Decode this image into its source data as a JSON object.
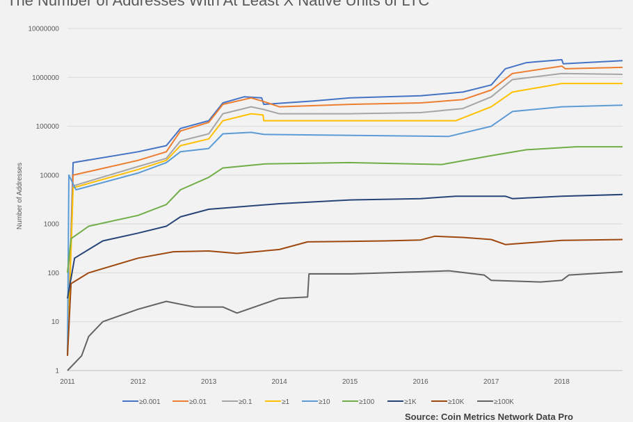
{
  "chart_data": {
    "type": "line",
    "title": "The Number of Addresses With At Least X Native Units of LTC",
    "ylabel": "Number of Addresses",
    "xlabel": "",
    "yscale": "log",
    "ylim": [
      1,
      10000000
    ],
    "xlim": [
      2011,
      2018.86
    ],
    "yticks": [
      "1",
      "10",
      "100",
      "1000",
      "10000",
      "100000",
      "1000000",
      "10000000"
    ],
    "xticks": [
      "2011",
      "2012",
      "2013",
      "2014",
      "2015",
      "2016",
      "2017",
      "2018"
    ],
    "grid": true,
    "legend_position": "bottom",
    "source": "Source: Coin Metrics Network Data Pro",
    "series": [
      {
        "name": "≥0.001",
        "color": "#4472c4",
        "points": [
          [
            2011,
            2
          ],
          [
            2011.08,
            18000
          ],
          [
            2012,
            30000
          ],
          [
            2012.4,
            40000
          ],
          [
            2012.6,
            90000
          ],
          [
            2013,
            130000
          ],
          [
            2013.2,
            300000
          ],
          [
            2013.5,
            400000
          ],
          [
            2013.75,
            380000
          ],
          [
            2013.78,
            280000
          ],
          [
            2014.5,
            330000
          ],
          [
            2015,
            380000
          ],
          [
            2016,
            420000
          ],
          [
            2016.6,
            500000
          ],
          [
            2017,
            700000
          ],
          [
            2017.2,
            1500000
          ],
          [
            2017.5,
            2000000
          ],
          [
            2018,
            2300000
          ],
          [
            2018.02,
            1900000
          ],
          [
            2018.86,
            2200000
          ]
        ]
      },
      {
        "name": "≥0.01",
        "color": "#ed7d31",
        "points": [
          [
            2011,
            2
          ],
          [
            2011.08,
            10000
          ],
          [
            2012,
            20000
          ],
          [
            2012.4,
            30000
          ],
          [
            2012.6,
            80000
          ],
          [
            2013,
            120000
          ],
          [
            2013.2,
            280000
          ],
          [
            2013.6,
            380000
          ],
          [
            2013.78,
            320000
          ],
          [
            2014,
            250000
          ],
          [
            2015,
            280000
          ],
          [
            2016,
            300000
          ],
          [
            2016.6,
            350000
          ],
          [
            2017,
            550000
          ],
          [
            2017.3,
            1200000
          ],
          [
            2018,
            1700000
          ],
          [
            2018.05,
            1500000
          ],
          [
            2018.86,
            1600000
          ]
        ]
      },
      {
        "name": "≥0.1",
        "color": "#a5a5a5",
        "points": [
          [
            2011,
            2
          ],
          [
            2011.08,
            6000
          ],
          [
            2012,
            15000
          ],
          [
            2012.4,
            22000
          ],
          [
            2012.6,
            50000
          ],
          [
            2013,
            70000
          ],
          [
            2013.2,
            180000
          ],
          [
            2013.6,
            250000
          ],
          [
            2013.78,
            220000
          ],
          [
            2014,
            180000
          ],
          [
            2015,
            180000
          ],
          [
            2016,
            190000
          ],
          [
            2016.6,
            230000
          ],
          [
            2017,
            400000
          ],
          [
            2017.3,
            900000
          ],
          [
            2018,
            1200000
          ],
          [
            2018.86,
            1150000
          ]
        ]
      },
      {
        "name": "≥1",
        "color": "#ffc000",
        "points": [
          [
            2011,
            2
          ],
          [
            2011.08,
            5500
          ],
          [
            2012,
            13000
          ],
          [
            2012.4,
            20000
          ],
          [
            2012.6,
            40000
          ],
          [
            2013,
            55000
          ],
          [
            2013.2,
            130000
          ],
          [
            2013.6,
            180000
          ],
          [
            2013.77,
            170000
          ],
          [
            2013.78,
            130000
          ],
          [
            2016.5,
            130000
          ],
          [
            2017,
            250000
          ],
          [
            2017.3,
            500000
          ],
          [
            2018,
            750000
          ],
          [
            2018.86,
            750000
          ]
        ]
      },
      {
        "name": "≥10",
        "color": "#5b9bd5",
        "points": [
          [
            2011,
            2
          ],
          [
            2011.02,
            10000
          ],
          [
            2011.12,
            5000
          ],
          [
            2012,
            11000
          ],
          [
            2012.4,
            18000
          ],
          [
            2012.6,
            30000
          ],
          [
            2013,
            35000
          ],
          [
            2013.2,
            70000
          ],
          [
            2013.6,
            75000
          ],
          [
            2013.78,
            68000
          ],
          [
            2016.4,
            62000
          ],
          [
            2017,
            100000
          ],
          [
            2017.3,
            200000
          ],
          [
            2018,
            250000
          ],
          [
            2018.86,
            270000
          ]
        ]
      },
      {
        "name": "≥100",
        "color": "#70ad47",
        "points": [
          [
            2011,
            100
          ],
          [
            2011.05,
            500
          ],
          [
            2011.3,
            900
          ],
          [
            2012,
            1500
          ],
          [
            2012.4,
            2500
          ],
          [
            2012.6,
            5000
          ],
          [
            2013,
            9000
          ],
          [
            2013.2,
            14000
          ],
          [
            2013.8,
            17000
          ],
          [
            2015,
            18000
          ],
          [
            2016.3,
            16500
          ],
          [
            2017,
            25000
          ],
          [
            2017.5,
            33000
          ],
          [
            2018.2,
            38000
          ],
          [
            2018.86,
            38000
          ]
        ]
      },
      {
        "name": "≥1K",
        "color": "#264478",
        "points": [
          [
            2011,
            30
          ],
          [
            2011.1,
            200
          ],
          [
            2011.5,
            450
          ],
          [
            2012,
            650
          ],
          [
            2012.4,
            900
          ],
          [
            2012.6,
            1400
          ],
          [
            2013,
            2000
          ],
          [
            2014,
            2600
          ],
          [
            2015,
            3100
          ],
          [
            2016,
            3300
          ],
          [
            2016.5,
            3700
          ],
          [
            2017.2,
            3700
          ],
          [
            2017.3,
            3300
          ],
          [
            2018,
            3700
          ],
          [
            2018.86,
            4000
          ]
        ]
      },
      {
        "name": "≥10K",
        "color": "#9e480e",
        "points": [
          [
            2011,
            2
          ],
          [
            2011.05,
            60
          ],
          [
            2011.3,
            100
          ],
          [
            2012,
            200
          ],
          [
            2012.5,
            270
          ],
          [
            2013,
            280
          ],
          [
            2013.4,
            250
          ],
          [
            2014,
            300
          ],
          [
            2014.4,
            430
          ],
          [
            2015.5,
            450
          ],
          [
            2016,
            470
          ],
          [
            2016.2,
            560
          ],
          [
            2016.6,
            530
          ],
          [
            2017,
            480
          ],
          [
            2017.2,
            380
          ],
          [
            2018,
            460
          ],
          [
            2018.86,
            480
          ]
        ]
      },
      {
        "name": "≥100K",
        "color": "#636363",
        "points": [
          [
            2011,
            1
          ],
          [
            2011.2,
            2
          ],
          [
            2011.3,
            5
          ],
          [
            2011.5,
            10
          ],
          [
            2012,
            18
          ],
          [
            2012.4,
            26
          ],
          [
            2012.8,
            20
          ],
          [
            2013.2,
            20
          ],
          [
            2013.4,
            15
          ],
          [
            2014,
            30
          ],
          [
            2014.4,
            32
          ],
          [
            2014.42,
            95
          ],
          [
            2015,
            95
          ],
          [
            2016,
            105
          ],
          [
            2016.4,
            110
          ],
          [
            2016.9,
            90
          ],
          [
            2017,
            70
          ],
          [
            2017.7,
            65
          ],
          [
            2018,
            70
          ],
          [
            2018.1,
            90
          ],
          [
            2018.86,
            105
          ]
        ]
      }
    ]
  }
}
